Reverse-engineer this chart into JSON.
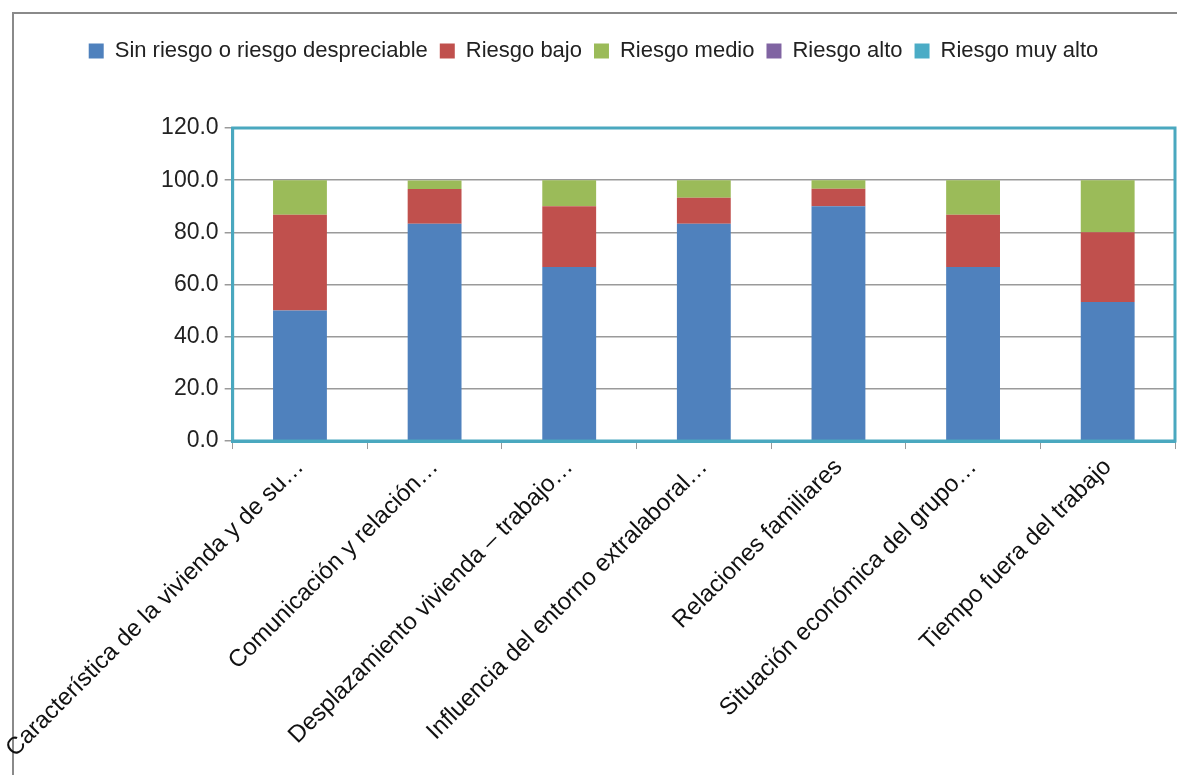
{
  "chart_data": {
    "type": "bar",
    "stacked": true,
    "categories": [
      "Característica de la vivienda y de su…",
      "Comunicación y relación…",
      "Desplazamiento vivienda – trabajo…",
      "Influencia del entorno extralaboral…",
      "Relaciones familiares",
      "Situación económica del grupo…",
      "Tiempo fuera del trabajo"
    ],
    "series": [
      {
        "name": "Sin riesgo o riesgo despreciable",
        "color": "#4f81bd",
        "values": [
          50,
          83.3,
          66.7,
          83.3,
          90,
          66.7,
          53.3
        ]
      },
      {
        "name": "Riesgo bajo",
        "color": "#c0504d",
        "values": [
          36.7,
          13.3,
          23.3,
          10,
          6.7,
          20,
          26.7
        ]
      },
      {
        "name": "Riesgo medio",
        "color": "#9bbb59",
        "values": [
          13.3,
          3.3,
          10,
          6.7,
          3.3,
          13.3,
          20
        ]
      },
      {
        "name": "Riesgo alto",
        "color": "#8064a2",
        "values": [
          0,
          0,
          0,
          0,
          0,
          0,
          0
        ]
      },
      {
        "name": "Riesgo muy alto",
        "color": "#4bacc6",
        "values": [
          0,
          0,
          0,
          0,
          0,
          0,
          0
        ]
      }
    ],
    "ylim": [
      0,
      120
    ],
    "yticks": [
      {
        "value": 0,
        "label": "0.0"
      },
      {
        "value": 20,
        "label": "20.0"
      },
      {
        "value": 40,
        "label": "40.0"
      },
      {
        "value": 60,
        "label": "60.0"
      },
      {
        "value": 80,
        "label": "80.0"
      },
      {
        "value": 100,
        "label": "100.0"
      },
      {
        "value": 120,
        "label": "120.0"
      }
    ],
    "grid": "y",
    "legend": "top"
  }
}
